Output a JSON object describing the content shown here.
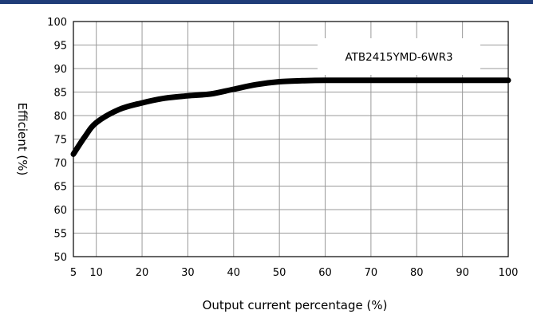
{
  "chart_data": {
    "type": "line",
    "title": "",
    "xlabel": "Output current percentage (%)",
    "ylabel": "Efficient (%)",
    "xlim": [
      5,
      100
    ],
    "ylim": [
      50,
      100
    ],
    "x_ticks": [
      "5",
      "10",
      "20",
      "30",
      "40",
      "50",
      "60",
      "70",
      "80",
      "90",
      "100"
    ],
    "y_ticks": [
      "50",
      "55",
      "60",
      "65",
      "70",
      "75",
      "80",
      "85",
      "90",
      "95",
      "100"
    ],
    "grid": true,
    "legend_position": "top-right",
    "series": [
      {
        "name": "ATB2415YMD-6WR3",
        "color": "#000000",
        "x": [
          5,
          7.5,
          10,
          15,
          20,
          25,
          30,
          35,
          40,
          45,
          50,
          55,
          60,
          70,
          80,
          90,
          100
        ],
        "y": [
          71.8,
          75.5,
          78.5,
          81.3,
          82.7,
          83.7,
          84.2,
          84.6,
          85.6,
          86.6,
          87.2,
          87.4,
          87.5,
          87.5,
          87.5,
          87.5,
          87.5
        ]
      }
    ]
  },
  "colors": {
    "top_bar": "#1f3c78",
    "grid": "#9a9a9a",
    "axis": "#000000"
  }
}
